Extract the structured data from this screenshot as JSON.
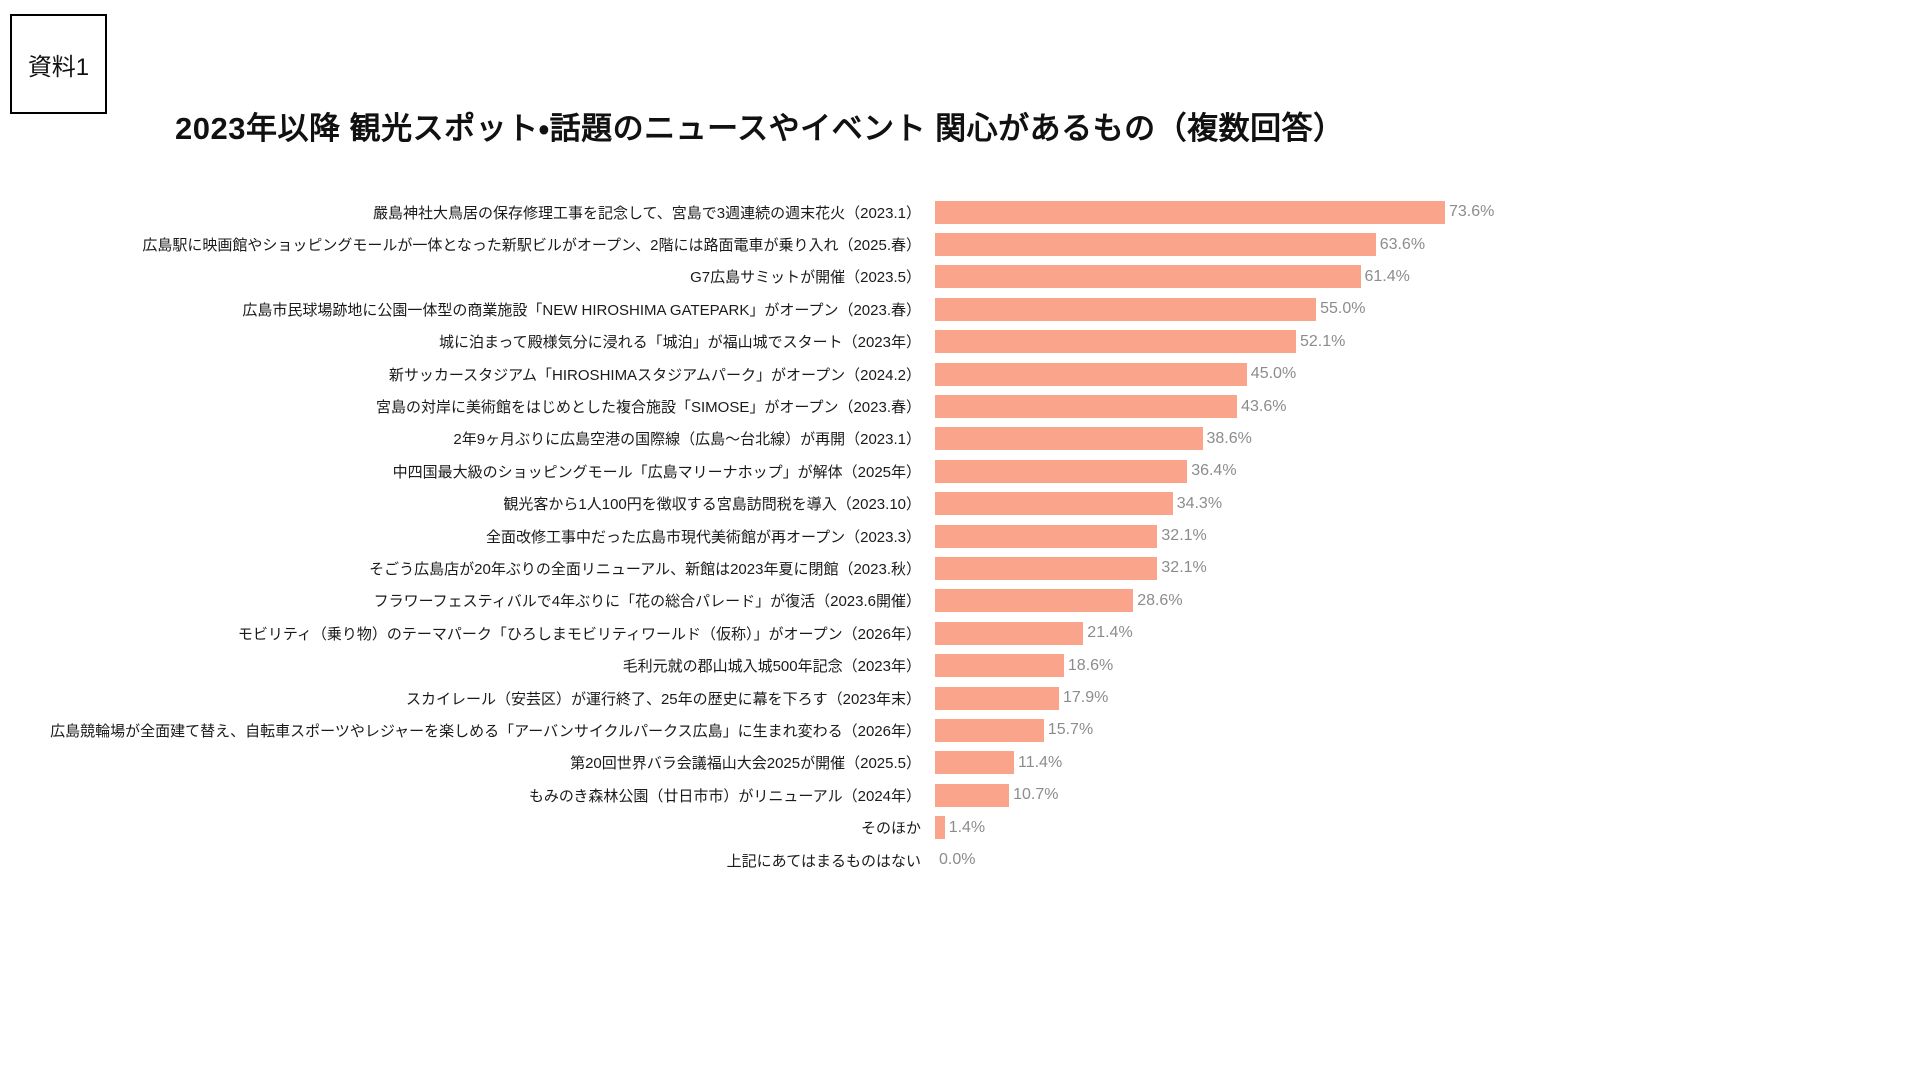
{
  "page": {
    "tag_label": "資料1",
    "title": "2023年以降 観光スポット・話題のニュースやイベント 関心があるもの（複数回答）"
  },
  "colors": {
    "bar": "#F9A48B",
    "value_text": "#8c8c8c",
    "label_text": "#1a1a1a"
  },
  "chart_data": {
    "type": "bar",
    "orientation": "horizontal",
    "title": "2023年以降 観光スポット・話題のニュースやイベント 関心があるもの（複数回答）",
    "unit": "%",
    "xlim": [
      0,
      80
    ],
    "grid": false,
    "legend": false,
    "categories": [
      "嚴島神社大鳥居の保存修理工事を記念して、宮島で3週連続の週末花火（2023.1）",
      "広島駅に映画館やショッピングモールが一体となった新駅ビルがオープン、2階には路面電車が乗り入れ（2025.春）",
      "G7広島サミットが開催（2023.5）",
      "広島市民球場跡地に公園一体型の商業施設「NEW HIROSHIMA GATEPARK」がオープン（2023.春）",
      "城に泊まって殿様気分に浸れる「城泊」が福山城でスタート（2023年）",
      "新サッカースタジアム「HIROSHIMAスタジアムパーク」がオープン（2024.2）",
      "宮島の対岸に美術館をはじめとした複合施設「SIMOSE」がオープン（2023.春）",
      "2年9ヶ月ぶりに広島空港の国際線（広島〜台北線）が再開（2023.1）",
      "中四国最大級のショッピングモール「広島マリーナホップ」が解体（2025年）",
      "観光客から1人100円を徴収する宮島訪問税を導入（2023.10）",
      "全面改修工事中だった広島市現代美術館が再オープン（2023.3）",
      "そごう広島店が20年ぶりの全面リニューアル、新館は2023年夏に閉館（2023.秋）",
      "フラワーフェスティバルで4年ぶりに「花の総合パレード」が復活（2023.6開催）",
      "モビリティ（乗り物）のテーマパーク「ひろしまモビリティワールド（仮称）」がオープン（2026年）",
      "毛利元就の郡山城入城500年記念（2023年）",
      "スカイレール（安芸区）が運行終了、25年の歴史に幕を下ろす（2023年末）",
      "広島競輪場が全面建て替え、自転車スポーツやレジャーを楽しめる「アーバンサイクルパークス広島」に生まれ変わる（2026年）",
      "第20回世界バラ会議福山大会2025が開催（2025.5）",
      "もみのき森林公園（廿日市市）がリニューアル（2024年）",
      "そのほか",
      "上記にあてはまるものはない"
    ],
    "values": [
      73.6,
      63.6,
      61.4,
      55.0,
      52.1,
      45.0,
      43.6,
      38.6,
      36.4,
      34.3,
      32.1,
      32.1,
      28.6,
      21.4,
      18.6,
      17.9,
      15.7,
      11.4,
      10.7,
      1.4,
      0.0
    ],
    "value_labels": [
      "73.6%",
      "63.6%",
      "61.4%",
      "55.0%",
      "52.1%",
      "45.0%",
      "43.6%",
      "38.6%",
      "36.4%",
      "34.3%",
      "32.1%",
      "32.1%",
      "28.6%",
      "21.4%",
      "18.6%",
      "17.9%",
      "15.7%",
      "11.4%",
      "10.7%",
      "1.4%",
      "0.0%"
    ]
  }
}
